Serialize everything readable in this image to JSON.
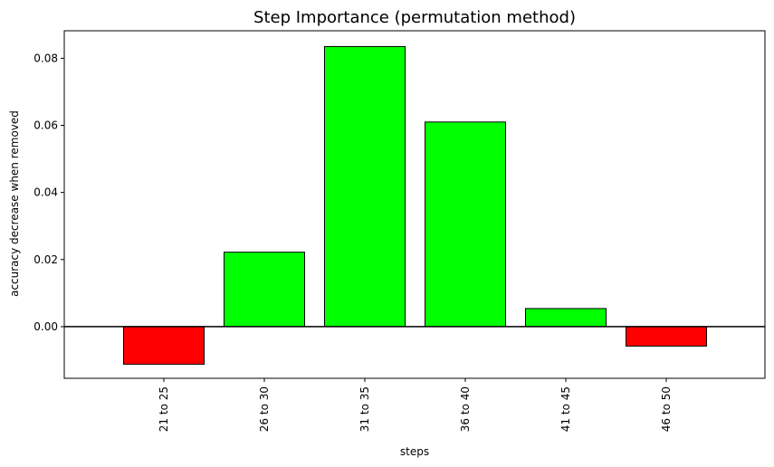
{
  "chart_data": {
    "type": "bar",
    "title": "Step Importance (permutation method)",
    "xlabel": "steps",
    "ylabel": "accuracy decrease when removed",
    "categories": [
      "21 to 25",
      "26 to 30",
      "31 to 35",
      "36 to 40",
      "41 to 45",
      "46 to 50"
    ],
    "values": [
      -0.0112,
      0.0222,
      0.0835,
      0.061,
      0.0054,
      -0.0058
    ],
    "ylim": [
      -0.0154,
      0.0882
    ],
    "yticks": [
      0.0,
      0.02,
      0.04,
      0.06,
      0.08
    ],
    "ytick_labels": [
      "0.00",
      "0.02",
      "0.04",
      "0.06",
      "0.08"
    ],
    "grid": false,
    "zero_line": true,
    "colors": {
      "positive": "#00ff00",
      "negative": "#ff0000",
      "edge": "#000000"
    }
  }
}
